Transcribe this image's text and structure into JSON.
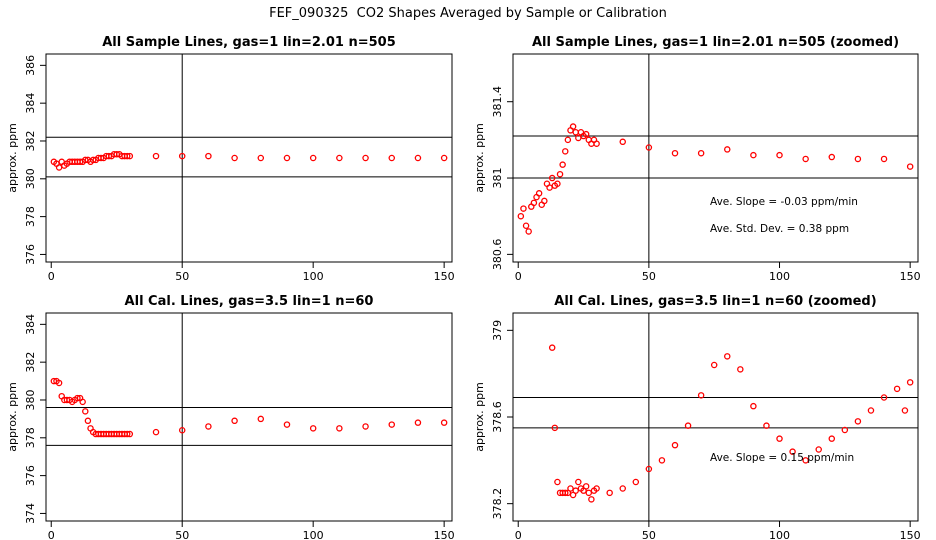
{
  "suptitle": "FEF_090325  CO2 Shapes Averaged by Sample or Calibration",
  "chart_data": [
    {
      "type": "scatter",
      "title": "All Sample Lines, gas=1 lin=2.01 n=505",
      "ylabel": "approx. ppm",
      "xlim": [
        -2,
        153
      ],
      "ylim": [
        375.6,
        386.6
      ],
      "xticks": [
        0,
        50,
        100,
        150
      ],
      "yticks": [
        376,
        378,
        380,
        382,
        384,
        386
      ],
      "vline": 50,
      "hlines": [
        380.1,
        382.2
      ],
      "marker_color": "#ff0000",
      "series": [
        {
          "x": [
            1,
            2,
            3,
            4,
            5,
            6,
            7,
            8,
            9,
            10,
            11,
            12,
            13,
            14,
            15,
            16,
            17,
            18,
            19,
            20,
            21,
            22,
            23,
            24,
            25,
            26,
            27,
            28,
            29,
            30,
            40,
            50,
            60,
            70,
            80,
            90,
            100,
            110,
            120,
            130,
            140,
            150
          ],
          "y": [
            380.9,
            380.8,
            380.6,
            380.9,
            380.7,
            380.8,
            380.9,
            380.9,
            380.9,
            380.9,
            380.9,
            380.9,
            381.0,
            381.0,
            380.9,
            381.0,
            381.0,
            381.1,
            381.1,
            381.1,
            381.2,
            381.2,
            381.2,
            381.3,
            381.3,
            381.3,
            381.2,
            381.2,
            381.2,
            381.2,
            381.2,
            381.2,
            381.2,
            381.1,
            381.1,
            381.1,
            381.1,
            381.1,
            381.1,
            381.1,
            381.1,
            381.1
          ]
        }
      ]
    },
    {
      "type": "scatter",
      "title": "All Sample Lines, gas=1 lin=2.01 n=505 (zoomed)",
      "ylabel": "approx. ppm",
      "xlim": [
        -2,
        153
      ],
      "ylim": [
        380.56,
        381.65
      ],
      "xticks": [
        0,
        50,
        100,
        150
      ],
      "yticks": [
        380.6,
        381.0,
        381.4
      ],
      "vline": 50,
      "hlines": [
        381.0,
        381.22
      ],
      "marker_color": "#ff0000",
      "annotations": [
        "Ave. Slope =  -0.03  ppm/min",
        "Ave. Std. Dev. =  0.38  ppm"
      ],
      "series": [
        {
          "x": [
            1,
            2,
            3,
            4,
            5,
            6,
            7,
            8,
            9,
            10,
            11,
            12,
            13,
            14,
            15,
            16,
            17,
            18,
            19,
            20,
            21,
            22,
            23,
            24,
            25,
            26,
            27,
            28,
            29,
            30,
            40,
            50,
            60,
            70,
            80,
            90,
            100,
            110,
            120,
            130,
            140,
            150
          ],
          "y": [
            380.8,
            380.84,
            380.75,
            380.72,
            380.85,
            380.87,
            380.9,
            380.92,
            380.86,
            380.88,
            380.97,
            380.95,
            381.0,
            380.96,
            380.97,
            381.02,
            381.07,
            381.14,
            381.2,
            381.25,
            381.27,
            381.24,
            381.21,
            381.24,
            381.22,
            381.23,
            381.2,
            381.18,
            381.2,
            381.18,
            381.19,
            381.16,
            381.13,
            381.13,
            381.15,
            381.12,
            381.12,
            381.1,
            381.11,
            381.1,
            381.1,
            381.06
          ]
        }
      ]
    },
    {
      "type": "scatter",
      "title": "All Cal. Lines, gas=3.5 lin=1 n=60",
      "ylabel": "approx. ppm",
      "xlim": [
        -2,
        153
      ],
      "ylim": [
        373.6,
        384.6
      ],
      "xticks": [
        0,
        50,
        100,
        150
      ],
      "yticks": [
        374,
        376,
        378,
        380,
        382,
        384
      ],
      "vline": 50,
      "hlines": [
        377.6,
        379.6
      ],
      "marker_color": "#ff0000",
      "series": [
        {
          "x": [
            1,
            2,
            3,
            4,
            5,
            6,
            7,
            8,
            9,
            10,
            11,
            12,
            13,
            14,
            15,
            16,
            17,
            18,
            19,
            20,
            21,
            22,
            23,
            24,
            25,
            26,
            27,
            28,
            29,
            30,
            40,
            50,
            60,
            70,
            80,
            90,
            100,
            110,
            120,
            130,
            140,
            150
          ],
          "y": [
            381.0,
            381.0,
            380.9,
            380.2,
            380.0,
            380.0,
            380.0,
            379.9,
            380.0,
            380.1,
            380.1,
            379.9,
            379.4,
            378.9,
            378.5,
            378.3,
            378.2,
            378.2,
            378.2,
            378.2,
            378.2,
            378.2,
            378.2,
            378.2,
            378.2,
            378.2,
            378.2,
            378.2,
            378.2,
            378.2,
            378.3,
            378.4,
            378.6,
            378.9,
            379.0,
            378.7,
            378.5,
            378.5,
            378.6,
            378.7,
            378.8,
            378.8
          ]
        }
      ]
    },
    {
      "type": "scatter",
      "title": "All Cal. Lines, gas=3.5 lin=1 n=60 (zoomed)",
      "ylabel": "approx. ppm",
      "xlim": [
        -2,
        153
      ],
      "ylim": [
        378.12,
        379.08
      ],
      "xticks": [
        0,
        50,
        100,
        150
      ],
      "yticks": [
        378.2,
        378.6,
        379.0
      ],
      "vline": 50,
      "hlines": [
        378.55,
        378.69
      ],
      "marker_color": "#ff0000",
      "annotations": [
        "Ave. Slope =  0.15  ppm/min"
      ],
      "series": [
        {
          "x": [
            13,
            14,
            15,
            16,
            17,
            18,
            19,
            20,
            21,
            22,
            23,
            24,
            25,
            26,
            27,
            28,
            29,
            30,
            35,
            40,
            45,
            50,
            55,
            60,
            65,
            70,
            75,
            80,
            85,
            90,
            95,
            100,
            105,
            110,
            115,
            120,
            125,
            130,
            135,
            140,
            145,
            148,
            150
          ],
          "y": [
            378.92,
            378.55,
            378.3,
            378.25,
            378.25,
            378.25,
            378.25,
            378.27,
            378.24,
            378.26,
            378.3,
            378.27,
            378.26,
            378.28,
            378.25,
            378.22,
            378.26,
            378.27,
            378.25,
            378.27,
            378.3,
            378.36,
            378.4,
            378.47,
            378.56,
            378.7,
            378.84,
            378.88,
            378.82,
            378.65,
            378.56,
            378.5,
            378.44,
            378.4,
            378.45,
            378.5,
            378.54,
            378.58,
            378.63,
            378.69,
            378.73,
            378.63,
            378.76
          ]
        }
      ]
    }
  ]
}
